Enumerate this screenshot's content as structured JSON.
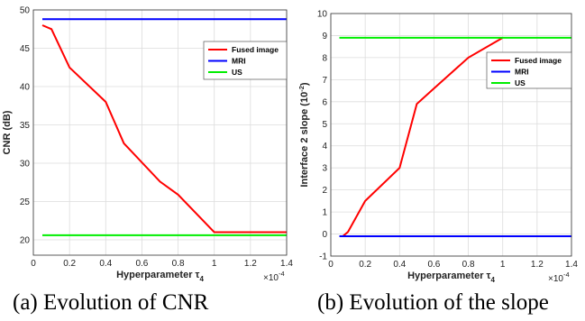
{
  "captions": {
    "a": "(a) Evolution of CNR",
    "b": "(b) Evolution of the slope"
  },
  "chart_data": [
    {
      "type": "line",
      "ylabel": "CNR (dB)",
      "xlabel": "Hyperparameter τ",
      "xlabel_subscript": "4",
      "x_multiplier": "×10",
      "x_multiplier_exp": "-4",
      "xlim": [
        0,
        1.4
      ],
      "ylim": [
        18,
        50
      ],
      "xticks": [
        0,
        0.2,
        0.4,
        0.6,
        0.8,
        1,
        1.2,
        1.4
      ],
      "yticks": [
        20,
        25,
        30,
        35,
        40,
        45,
        50
      ],
      "grid": true,
      "legend_position": "top-right",
      "series": [
        {
          "name": "Fused image",
          "color": "#ff0000",
          "x": [
            0.05,
            0.1,
            0.2,
            0.4,
            0.5,
            0.7,
            0.8,
            1.0,
            1.4
          ],
          "y": [
            48,
            47.5,
            42.5,
            38,
            32.6,
            27.6,
            25.9,
            21,
            21
          ]
        },
        {
          "name": "MRI",
          "color": "#0000ff",
          "x": [
            0.05,
            1.4
          ],
          "y": [
            48.8,
            48.8
          ]
        },
        {
          "name": "US",
          "color": "#00ee00",
          "x": [
            0.05,
            1.4
          ],
          "y": [
            20.6,
            20.6
          ]
        }
      ]
    },
    {
      "type": "line",
      "ylabel": "Interface 2 slope (10",
      "ylabel_exp": "-2",
      "ylabel_end": ")",
      "xlabel": "Hyperparameter τ",
      "xlabel_subscript": "4",
      "x_multiplier": "×10",
      "x_multiplier_exp": "-4",
      "xlim": [
        0,
        1.4
      ],
      "ylim": [
        -1,
        10
      ],
      "xticks": [
        0,
        0.2,
        0.4,
        0.6,
        0.8,
        1,
        1.2,
        1.4
      ],
      "yticks": [
        -1,
        0,
        1,
        2,
        3,
        4,
        5,
        6,
        7,
        8,
        9,
        10
      ],
      "grid": true,
      "legend_position": "top-right",
      "series": [
        {
          "name": "Fused image",
          "color": "#ff0000",
          "x": [
            0.07,
            0.1,
            0.2,
            0.4,
            0.5,
            0.6,
            0.7,
            0.8,
            1.0
          ],
          "y": [
            -0.1,
            0.1,
            1.5,
            3.0,
            5.9,
            6.6,
            7.3,
            8.0,
            8.9
          ]
        },
        {
          "name": "MRI",
          "color": "#0000ff",
          "x": [
            0.05,
            1.4
          ],
          "y": [
            -0.1,
            -0.1
          ]
        },
        {
          "name": "US",
          "color": "#00ee00",
          "x": [
            0.05,
            1.4
          ],
          "y": [
            8.9,
            8.9
          ]
        }
      ]
    }
  ]
}
